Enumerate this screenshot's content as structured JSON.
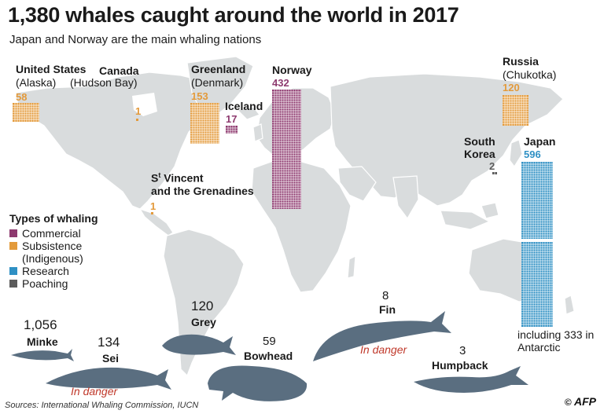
{
  "title": "1,380 whales caught around the world in 2017",
  "subtitle": "Japan and Norway are the main whaling nations",
  "colors": {
    "commercial": "#8e3a6f",
    "subsistence": "#e39a3b",
    "research": "#2f90c4",
    "poaching": "#5c5c5c",
    "land": "#d9dcdd",
    "whale": "#5a6e80",
    "danger": "#c0392b"
  },
  "countries": [
    {
      "name": "United States",
      "sub": "(Alaska)",
      "count": "58",
      "type": "subsistence"
    },
    {
      "name": "Canada",
      "sub": "(Hudson Bay)",
      "count": "1",
      "type": "subsistence"
    },
    {
      "name": "Greenland",
      "sub": "(Denmark)",
      "count": "153",
      "type": "subsistence"
    },
    {
      "name": "Iceland",
      "sub": "",
      "count": "17",
      "type": "commercial"
    },
    {
      "name": "Norway",
      "sub": "",
      "count": "432",
      "type": "commercial"
    },
    {
      "name": "Russia",
      "sub": "(Chukotka)",
      "count": "120",
      "type": "subsistence"
    },
    {
      "name": "South Korea",
      "sub": "",
      "count": "2",
      "type": "poaching"
    },
    {
      "name": "Japan",
      "sub": "",
      "count": "596",
      "type": "research",
      "note": "including 333 in  Antarctic"
    },
    {
      "name_main": "Vincent",
      "name_sup": "t",
      "name_pre": "S",
      "name_line2": "and the Grenadines",
      "count": "1",
      "type": "subsistence"
    }
  ],
  "legend": {
    "title": "Types of whaling",
    "items": [
      {
        "label": "Commercial",
        "color": "#8e3a6f"
      },
      {
        "label": "Subsistence",
        "label2": "(Indigenous)",
        "color": "#e39a3b"
      },
      {
        "label": "Research",
        "color": "#2f90c4"
      },
      {
        "label": "Poaching",
        "color": "#5c5c5c"
      }
    ]
  },
  "species": [
    {
      "name": "Minke",
      "count": "1,056",
      "status": ""
    },
    {
      "name": "Sei",
      "count": "134",
      "status": "In danger"
    },
    {
      "name": "Grey",
      "count": "120",
      "status": ""
    },
    {
      "name": "Bowhead",
      "count": "59",
      "status": ""
    },
    {
      "name": "Fin",
      "count": "8",
      "status": "In danger"
    },
    {
      "name": "Humpback",
      "count": "3",
      "status": ""
    }
  ],
  "source": "Sources: International Whaling Commission, IUCN",
  "credit_symbol": "©",
  "credit_brand": "AFP"
}
